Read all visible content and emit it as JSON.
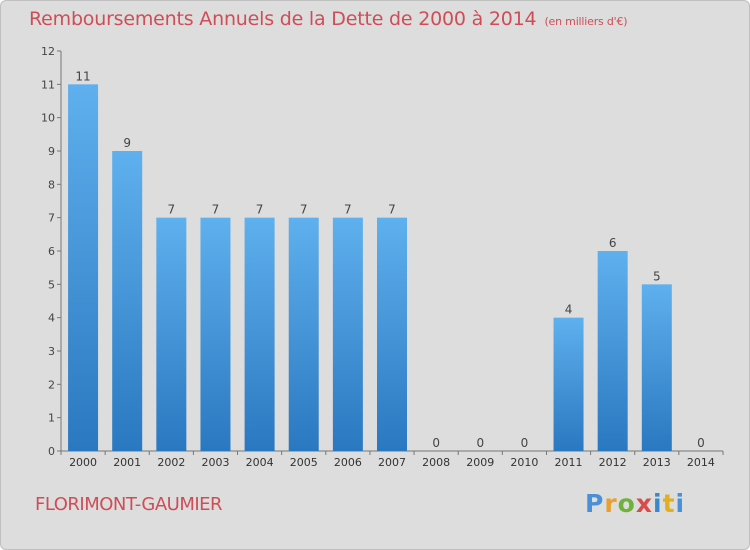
{
  "title": "Remboursements Annuels de la Dette de 2000 à 2014",
  "unit_note": "(en milliers d'€)",
  "commune": "FLORIMONT-GAUMIER",
  "logo_text": "Proxiti",
  "colors": {
    "bar": "#3d8fd4",
    "bar_light": "#5fb0ee",
    "title": "#cf4d57",
    "background": "#dddddd"
  },
  "chart_data": {
    "type": "bar",
    "title": "Remboursements Annuels de la Dette de 2000 à 2014",
    "xlabel": "",
    "ylabel": "",
    "categories": [
      "2000",
      "2001",
      "2002",
      "2003",
      "2004",
      "2005",
      "2006",
      "2007",
      "2008",
      "2009",
      "2010",
      "2011",
      "2012",
      "2013",
      "2014"
    ],
    "values": [
      11,
      9,
      7,
      7,
      7,
      7,
      7,
      7,
      0,
      0,
      0,
      4,
      6,
      5,
      0
    ],
    "y_ticks": [
      0,
      1,
      2,
      3,
      4,
      5,
      6,
      7,
      8,
      9,
      10,
      11,
      12
    ],
    "ylim": [
      0,
      12
    ],
    "grid": false
  }
}
